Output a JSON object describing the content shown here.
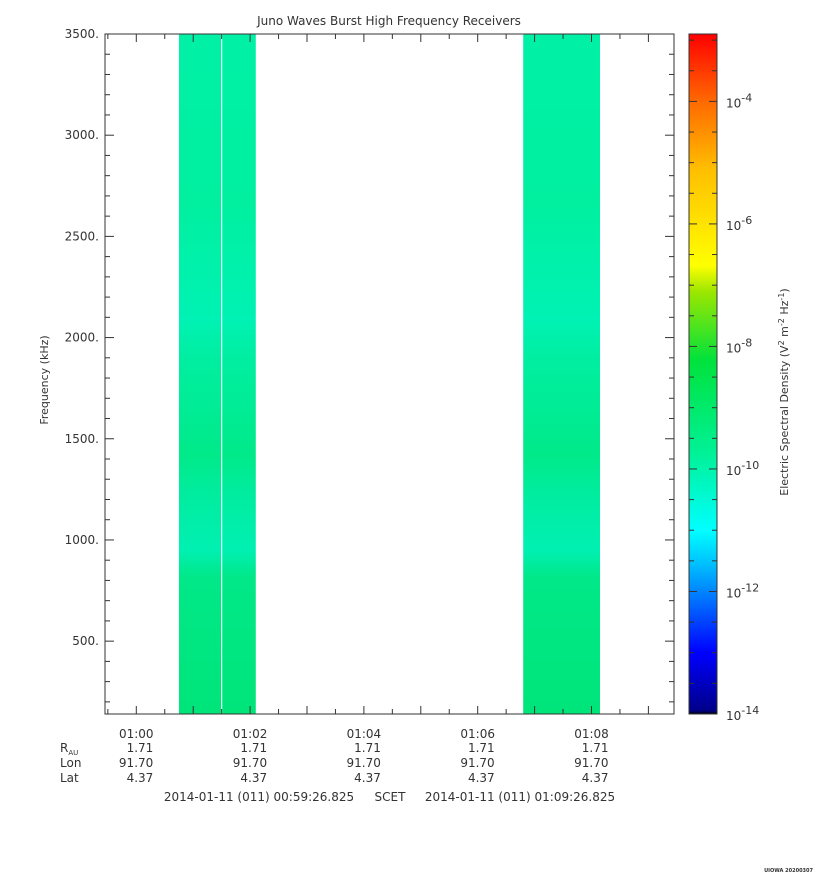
{
  "chart_data": {
    "type": "heatmap",
    "title": "Juno Waves Burst High Frequency Receivers",
    "ylabel": "Frequency (kHz)",
    "ylim": [
      140,
      3500
    ],
    "yticks": [
      {
        "value": 500,
        "label": "500."
      },
      {
        "value": 1000,
        "label": "1000."
      },
      {
        "value": 1500,
        "label": "1500."
      },
      {
        "value": 2000,
        "label": "2000."
      },
      {
        "value": 2500,
        "label": "2500."
      },
      {
        "value": 3000,
        "label": "3000."
      },
      {
        "value": 3500,
        "label": "3500."
      }
    ],
    "x_minutes_range": [
      59.45,
      69.45
    ],
    "xticks": [
      {
        "minute": 60,
        "label": "01:00"
      },
      {
        "minute": 62,
        "label": "01:02"
      },
      {
        "minute": 64,
        "label": "01:04"
      },
      {
        "minute": 66,
        "label": "01:06"
      },
      {
        "minute": 68,
        "label": "01:08"
      }
    ],
    "bursts": [
      {
        "start_minute": 60.75,
        "end_minute": 62.1,
        "log_density": -10.1,
        "gap_minute": 61.5
      },
      {
        "start_minute": 66.8,
        "end_minute": 68.15,
        "log_density": -10.1
      }
    ],
    "colorbar": {
      "label": "Electric Spectral Density (V",
      "label_sup1": "2",
      "label_mid": " m",
      "label_sup2": "-2",
      "label_mid2": " Hz",
      "label_sup3": "-1",
      "label_end": ")",
      "log_min": -14,
      "log_max": -2.9,
      "ticks": [
        {
          "exp": -14,
          "base": "10",
          "sup": "-14"
        },
        {
          "exp": -12,
          "base": "10",
          "sup": "-12"
        },
        {
          "exp": -10,
          "base": "10",
          "sup": "-10"
        },
        {
          "exp": -8,
          "base": "10",
          "sup": "-8"
        },
        {
          "exp": -6,
          "base": "10",
          "sup": "-6"
        },
        {
          "exp": -4,
          "base": "10",
          "sup": "-4"
        }
      ]
    },
    "ephemeris": {
      "rows": [
        {
          "label": "R",
          "label_sub": "AU",
          "values": [
            "1.71",
            "1.71",
            "1.71",
            "1.71",
            "1.71"
          ]
        },
        {
          "label": "Lon",
          "values": [
            "91.70",
            "91.70",
            "91.70",
            "91.70",
            "91.70"
          ]
        },
        {
          "label": "Lat",
          "values": [
            "4.37",
            "4.37",
            "4.37",
            "4.37",
            "4.37"
          ]
        }
      ]
    },
    "time_range": {
      "start": "2014-01-11 (011) 00:59:26.825",
      "scet": "SCET",
      "end": "2014-01-11 (011) 01:09:26.825"
    },
    "footer": "UIOWA 20200307"
  }
}
